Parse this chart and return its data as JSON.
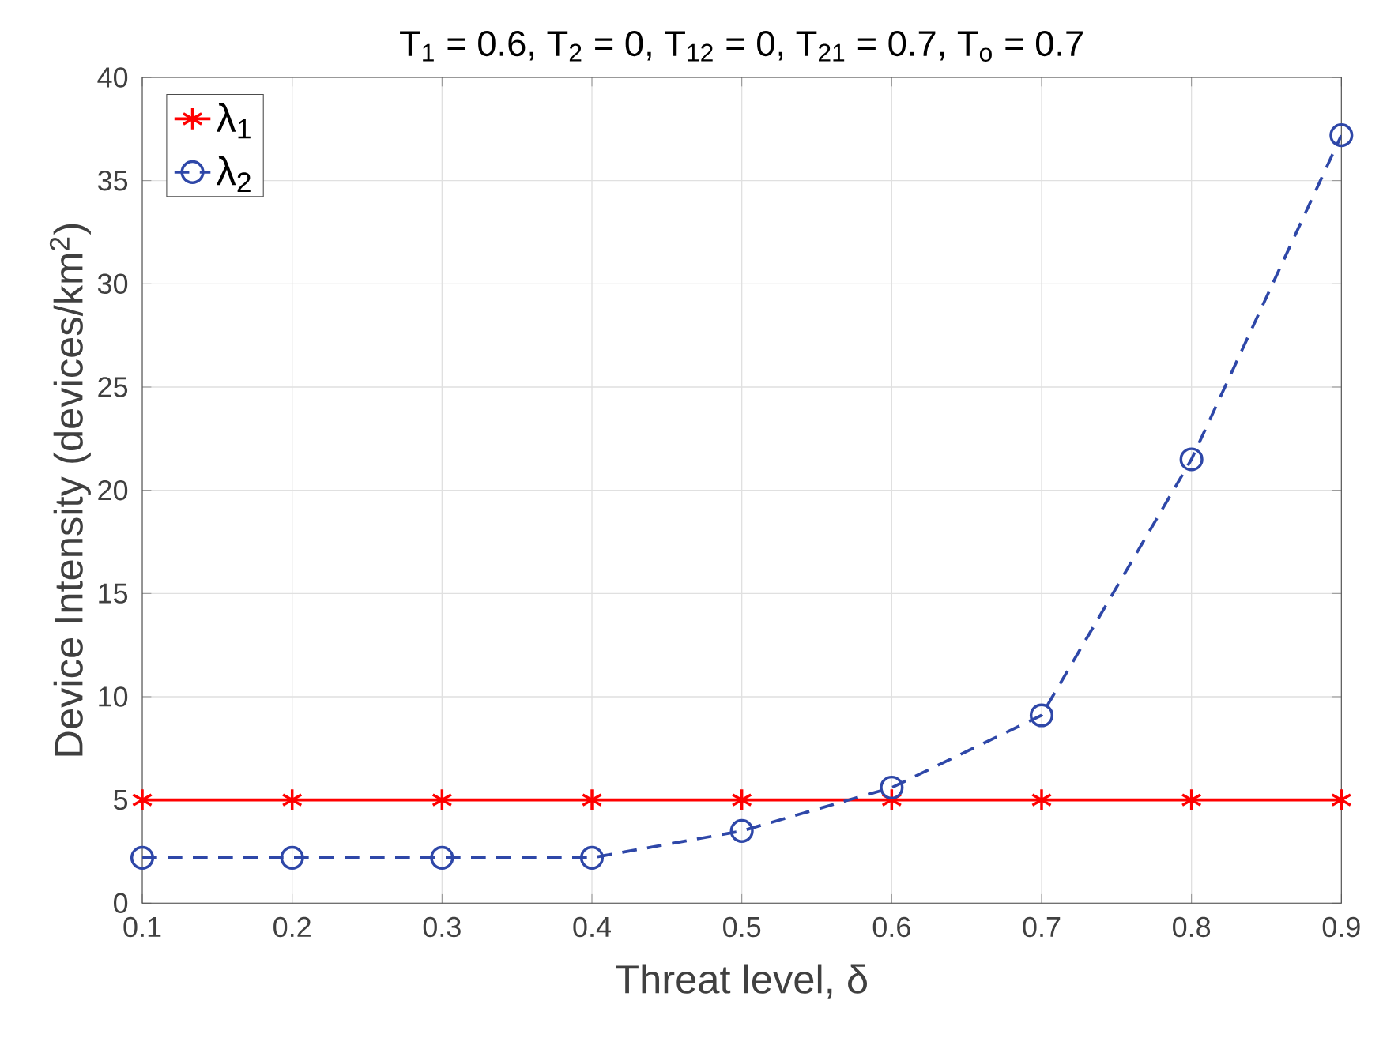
{
  "chart_data": {
    "type": "line",
    "title": "T$_{1}$ = 0.6, T$_{2}$ = 0, T$_{12}$ = 0, T$_{21}$ = 0.7, T$_{o}$ = 0.7",
    "xlabel": "Threat  level, δ",
    "ylabel": "Device Intensity (devices/km$^{2}$)",
    "x": [
      0.1,
      0.2,
      0.3,
      0.4,
      0.5,
      0.6,
      0.7,
      0.8,
      0.9
    ],
    "series": [
      {
        "name": "λ$_{1}$",
        "color": "#ff0000",
        "marker": "cross",
        "line_style": "solid",
        "values": [
          5,
          5,
          5,
          5,
          5,
          5,
          5,
          5,
          5
        ]
      },
      {
        "name": "λ$_{2}$",
        "color": "#2e47a8",
        "marker": "circle",
        "line_style": "dashed",
        "values": [
          2.2,
          2.2,
          2.2,
          2.2,
          3.5,
          5.6,
          9.1,
          21.5,
          37.2
        ]
      }
    ],
    "xlim": [
      0.1,
      0.9
    ],
    "ylim": [
      0,
      40
    ],
    "xticks": [
      0.1,
      0.2,
      0.3,
      0.4,
      0.5,
      0.6,
      0.7,
      0.8,
      0.9
    ],
    "yticks": [
      0,
      5,
      10,
      15,
      20,
      25,
      30,
      35,
      40
    ],
    "grid": true,
    "legend": "top left"
  }
}
